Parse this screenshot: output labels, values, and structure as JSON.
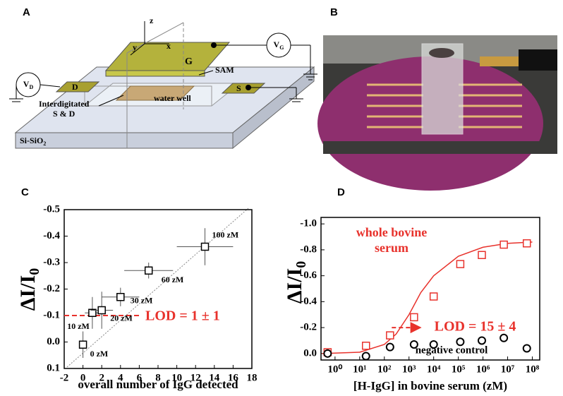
{
  "panel_labels": [
    "A",
    "B",
    "C",
    "D"
  ],
  "schematic": {
    "axis_labels": [
      "z",
      "y",
      "x"
    ],
    "gate": "G",
    "sam": "SAM",
    "gate_voltage": {
      "main": "V",
      "sub": "G"
    },
    "drain_voltage": {
      "main": "V",
      "sub": "D"
    },
    "drain": "D",
    "source": "S",
    "electrodes": [
      "Interdigitated",
      "S & D"
    ],
    "well": "water well",
    "substrate": {
      "main": "Si-SiO",
      "sub": "2"
    }
  },
  "chart_data": [
    {
      "type": "scatter",
      "xlabel": "overall number of IgG detected",
      "ylabel": "ΔI/I",
      "ylabel_subscript": "0",
      "xlim": [
        -2,
        18
      ],
      "xticks": [
        -2,
        0,
        2,
        4,
        6,
        8,
        10,
        12,
        14,
        16,
        18
      ],
      "ylim": [
        0.1,
        -0.5
      ],
      "yticks": [
        0.1,
        {
          "value": 0,
          "label": "0.0"
        },
        -0.1,
        -0.2,
        -0.3,
        -0.4,
        -0.5
      ],
      "series": [
        {
          "color": "#000000",
          "marker": "square",
          "x": [
            0,
            1,
            2,
            4,
            7,
            13
          ],
          "values": [
            0.01,
            -0.11,
            -0.12,
            -0.17,
            -0.27,
            -0.36
          ],
          "errors": [
            0.05,
            0.06,
            0.07,
            0.035,
            0.03,
            0.07
          ],
          "xerrors": [
            0.4,
            0.8,
            1.2,
            2,
            2.6,
            3
          ],
          "point_labels": [
            "0 zM",
            "10 zM",
            "20 zM",
            "30 zM",
            "60 zM",
            "100 zM"
          ]
        }
      ],
      "lod": {
        "value": -0.1,
        "label": "LOD = 1 ± 1",
        "color": "#e8322c"
      }
    },
    {
      "type": "scatter",
      "log_x": true,
      "xlabel": "[H-IgG] in bovine serum (zM)",
      "ylabel": "ΔI/I",
      "ylabel_subscript": "0",
      "xlim": [
        0.27,
        200000000
      ],
      "xticks": [
        {
          "value": 1,
          "label": "10⁰"
        },
        {
          "value": 10,
          "label": "10¹"
        },
        {
          "value": 100,
          "label": "10²"
        },
        {
          "value": 1000,
          "label": "10³"
        },
        {
          "value": 10000,
          "label": "10⁴"
        },
        {
          "value": 100000,
          "label": "10⁵"
        },
        {
          "value": 1000000,
          "label": "10⁶"
        },
        {
          "value": 10000000,
          "label": "10⁷"
        },
        {
          "value": 100000000,
          "label": "10⁸"
        }
      ],
      "ylim": [
        0.05,
        -1.05
      ],
      "yticks": [
        {
          "value": 0,
          "label": "0.0"
        },
        -0.2,
        -0.4,
        -0.6,
        -0.8,
        {
          "value": -1,
          "label": "-1.0"
        }
      ],
      "series": [
        {
          "name": "whole bovine serum",
          "color": "#e8322c",
          "marker": "square",
          "x": [
            0.5,
            18,
            170,
            1600,
            10000,
            120000,
            900000,
            7000000,
            60000000
          ],
          "values": [
            -0.01,
            -0.06,
            -0.14,
            -0.28,
            -0.44,
            -0.69,
            -0.76,
            -0.84,
            -0.85
          ]
        },
        {
          "name": "negative control",
          "color": "#000000",
          "marker": "circle",
          "x": [
            0.5,
            18,
            170,
            1600,
            10000,
            120000,
            900000,
            7000000,
            60000000
          ],
          "values": [
            0,
            0.02,
            -0.05,
            -0.07,
            -0.07,
            -0.09,
            -0.1,
            -0.12,
            -0.04
          ]
        }
      ],
      "fit": {
        "color": "#e8322c",
        "x": [
          0.3,
          10,
          100,
          300,
          1000,
          3000,
          10000,
          100000,
          1000000,
          10000000,
          100000000
        ],
        "values": [
          0,
          -0.01,
          -0.07,
          -0.15,
          -0.3,
          -0.47,
          -0.6,
          -0.75,
          -0.82,
          -0.85,
          -0.86
        ]
      },
      "lod": {
        "value": -0.2,
        "x": [
          200,
          2500
        ],
        "label": "LOD = 15 ± 4",
        "color": "#e8322c"
      }
    }
  ]
}
